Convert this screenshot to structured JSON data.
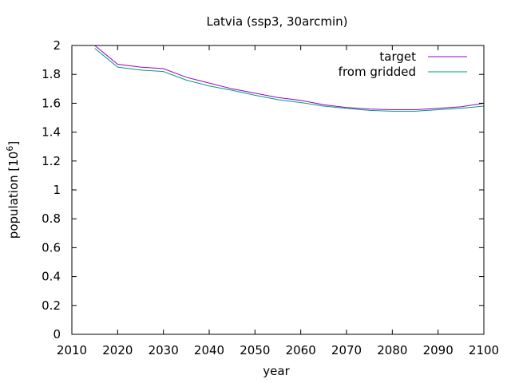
{
  "chart_data": {
    "type": "line",
    "title": "Latvia (ssp3, 30arcmin)",
    "xlabel": "year",
    "ylabel": "population [10",
    "ylabel_sup": "6",
    "ylabel_close": "]",
    "xlim": [
      2010,
      2100
    ],
    "ylim": [
      0,
      2
    ],
    "xticks": [
      2010,
      2020,
      2030,
      2040,
      2050,
      2060,
      2070,
      2080,
      2090,
      2100
    ],
    "yticks": [
      0,
      0.2,
      0.4,
      0.6,
      0.8,
      1,
      1.2,
      1.4,
      1.6,
      1.8,
      2
    ],
    "ytick_labels": [
      "0",
      "0.2",
      "0.4",
      "0.6",
      "0.8",
      "1",
      "1.2",
      "1.4",
      "1.6",
      "1.8",
      "2"
    ],
    "grid": false,
    "legend": "top-right",
    "x": [
      2015,
      2020,
      2025,
      2030,
      2035,
      2040,
      2045,
      2050,
      2055,
      2060,
      2065,
      2070,
      2075,
      2080,
      2085,
      2090,
      2095,
      2100
    ],
    "series": [
      {
        "name": "target",
        "color": "#9400d3",
        "values": [
          2.0,
          1.87,
          1.85,
          1.84,
          1.78,
          1.74,
          1.7,
          1.67,
          1.64,
          1.62,
          1.59,
          1.57,
          1.56,
          1.555,
          1.555,
          1.565,
          1.575,
          1.6
        ]
      },
      {
        "name": "from gridded",
        "color": "#009e73",
        "values": [
          1.98,
          1.85,
          1.83,
          1.82,
          1.76,
          1.72,
          1.69,
          1.655,
          1.625,
          1.605,
          1.58,
          1.565,
          1.55,
          1.545,
          1.545,
          1.555,
          1.565,
          1.58
        ]
      }
    ]
  }
}
